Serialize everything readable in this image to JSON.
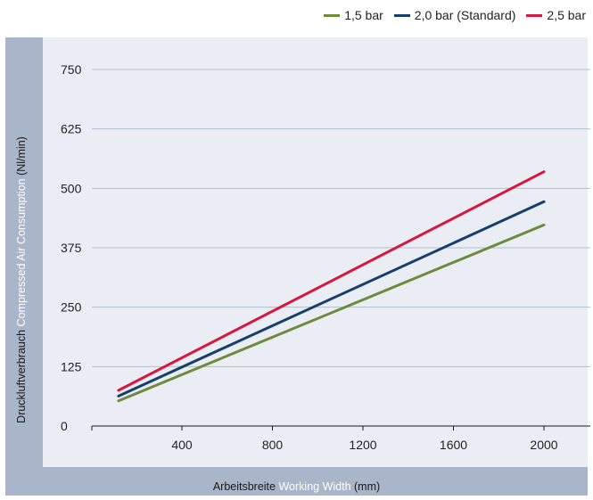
{
  "legend": [
    {
      "label": "1,5 bar",
      "color": "#6e8b3d"
    },
    {
      "label": "2,0 bar (Standard)",
      "color": "#173f6b"
    },
    {
      "label": "2,5 bar",
      "color": "#d8173f"
    }
  ],
  "axis_titles": {
    "y_de": "Druckluftverbrauch",
    "y_en": "Compressed Air Consumption",
    "y_unit": "(Nl/min)",
    "x_de": "Arbeitsbreite",
    "x_en": "Working Width",
    "x_unit": "(mm)"
  },
  "chart_data": {
    "type": "line",
    "xlabel": "Arbeitsbreite Working Width (mm)",
    "ylabel": "Druckluftverbrauch Compressed Air Consumption (Nl/min)",
    "xlim": [
      0,
      2100
    ],
    "ylim": [
      0,
      750
    ],
    "x_ticks": [
      400,
      800,
      1200,
      1600,
      2000
    ],
    "y_ticks": [
      0,
      125,
      250,
      375,
      500,
      625,
      750
    ],
    "grid": true,
    "legend_position": "top-right",
    "series": [
      {
        "name": "1,5 bar",
        "color": "#6e8b3d",
        "x": [
          120,
          2000
        ],
        "y": [
          53,
          423
        ]
      },
      {
        "name": "2,0 bar (Standard)",
        "color": "#173f6b",
        "x": [
          120,
          2000
        ],
        "y": [
          63,
          472
        ]
      },
      {
        "name": "2,5 bar",
        "color": "#d8173f",
        "x": [
          120,
          2000
        ],
        "y": [
          75,
          535
        ]
      }
    ]
  }
}
